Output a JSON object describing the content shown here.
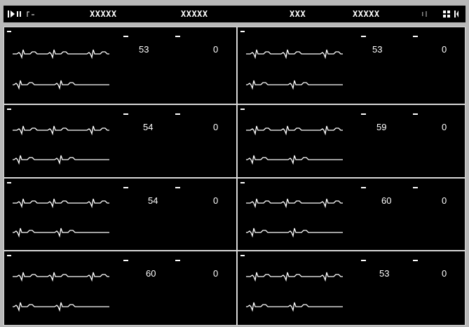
{
  "header": {
    "fields": [
      "XXXXX",
      "XXXXX",
      "XXX",
      "XXXXX"
    ]
  },
  "colors": {
    "background": "#000000",
    "trace": "#ffffff",
    "frame": "#d8d8d8"
  },
  "tiles": [
    {
      "label": "tile-1",
      "value_a": "53",
      "value_b": "0"
    },
    {
      "label": "tile-2",
      "value_a": "53",
      "value_b": "0"
    },
    {
      "label": "tile-3",
      "value_a": "54",
      "value_b": "0"
    },
    {
      "label": "tile-4",
      "value_a": "59",
      "value_b": "0"
    },
    {
      "label": "tile-5",
      "value_a": "54",
      "value_b": "0"
    },
    {
      "label": "tile-6",
      "value_a": "60",
      "value_b": "0"
    },
    {
      "label": "tile-7",
      "value_a": "60",
      "value_b": "0"
    },
    {
      "label": "tile-8",
      "value_a": "53",
      "value_b": "0"
    }
  ]
}
